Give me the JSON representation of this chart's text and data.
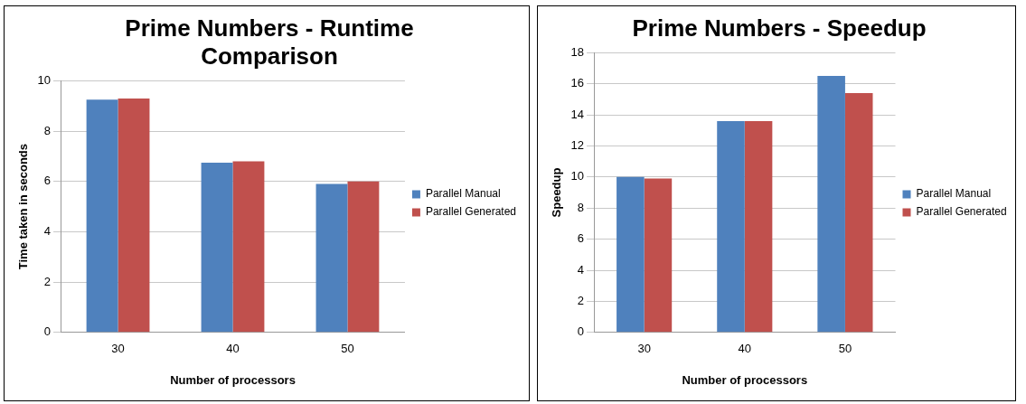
{
  "chart_data": [
    {
      "type": "bar",
      "title": "Prime Numbers - Runtime Comparison",
      "xlabel": "Number of processors",
      "ylabel": "Time taken in seconds",
      "categories": [
        "30",
        "40",
        "50"
      ],
      "series": [
        {
          "name": "Parallel Manual",
          "color": "#4f81bd",
          "values": [
            9.25,
            6.75,
            5.9
          ]
        },
        {
          "name": "Parallel Generated",
          "color": "#c0504d",
          "values": [
            9.3,
            6.8,
            6.0
          ]
        }
      ],
      "ylim": [
        0,
        10
      ],
      "yticks": [
        0,
        2,
        4,
        6,
        8,
        10
      ],
      "grid": "y",
      "legend": "right"
    },
    {
      "type": "bar",
      "title": "Prime Numbers - Speedup",
      "ylabel": "Speedup",
      "xlabel": "Number of processors",
      "categories": [
        "30",
        "40",
        "50"
      ],
      "series": [
        {
          "name": "Parallel Manual",
          "color": "#4f81bd",
          "values": [
            10.0,
            13.6,
            16.5
          ]
        },
        {
          "name": "Parallel Generated",
          "color": "#c0504d",
          "values": [
            9.9,
            13.6,
            15.4
          ]
        }
      ],
      "ylim": [
        0,
        18
      ],
      "yticks": [
        0,
        2,
        4,
        6,
        8,
        10,
        12,
        14,
        16,
        18
      ],
      "grid": "y",
      "legend": "right"
    }
  ]
}
